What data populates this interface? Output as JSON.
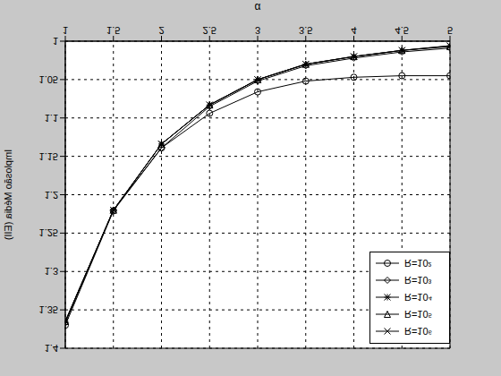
{
  "chart_data": {
    "type": "line",
    "x_label": "α",
    "y_label": "Implosão Média (EII)",
    "x": [
      1,
      1.5,
      2,
      2.5,
      3,
      3.5,
      4,
      4.5,
      5
    ],
    "series": [
      {
        "name": "R=10⁶",
        "color": "#000000",
        "marker": "x",
        "values": [
          1.365,
          1.22,
          1.134,
          1.083,
          1.05,
          1.03,
          1.02,
          1.012,
          1.006
        ]
      },
      {
        "name": "R=10⁵",
        "color": "#000000",
        "marker": "triangle-down",
        "values": [
          1.365,
          1.22,
          1.134,
          1.083,
          1.05,
          1.03,
          1.02,
          1.012,
          1.007
        ]
      },
      {
        "name": "R=10⁴",
        "color": "#000000",
        "marker": "asterisk",
        "values": [
          1.365,
          1.22,
          1.134,
          1.083,
          1.05,
          1.03,
          1.02,
          1.012,
          1.006
        ]
      },
      {
        "name": "R=10³",
        "color": "#000000",
        "marker": "diamond",
        "values": [
          1.367,
          1.22,
          1.139,
          1.085,
          1.052,
          1.032,
          1.022,
          1.014,
          1.009
        ]
      },
      {
        "name": "R=10²",
        "color": "#000000",
        "marker": "circle",
        "values": [
          1.37,
          1.221,
          1.139,
          1.094,
          1.066,
          1.052,
          1.047,
          1.045,
          1.045
        ]
      }
    ],
    "xlim": [
      1,
      5
    ],
    "ylim": [
      1,
      1.4
    ],
    "xticks": [
      1,
      1.5,
      2,
      2.5,
      3,
      3.5,
      4,
      4.5,
      5
    ],
    "yticks": [
      1,
      1.05,
      1.1,
      1.15,
      1.2,
      1.25,
      1.3,
      1.35,
      1.4
    ],
    "grid": true,
    "legend": "top-right"
  }
}
